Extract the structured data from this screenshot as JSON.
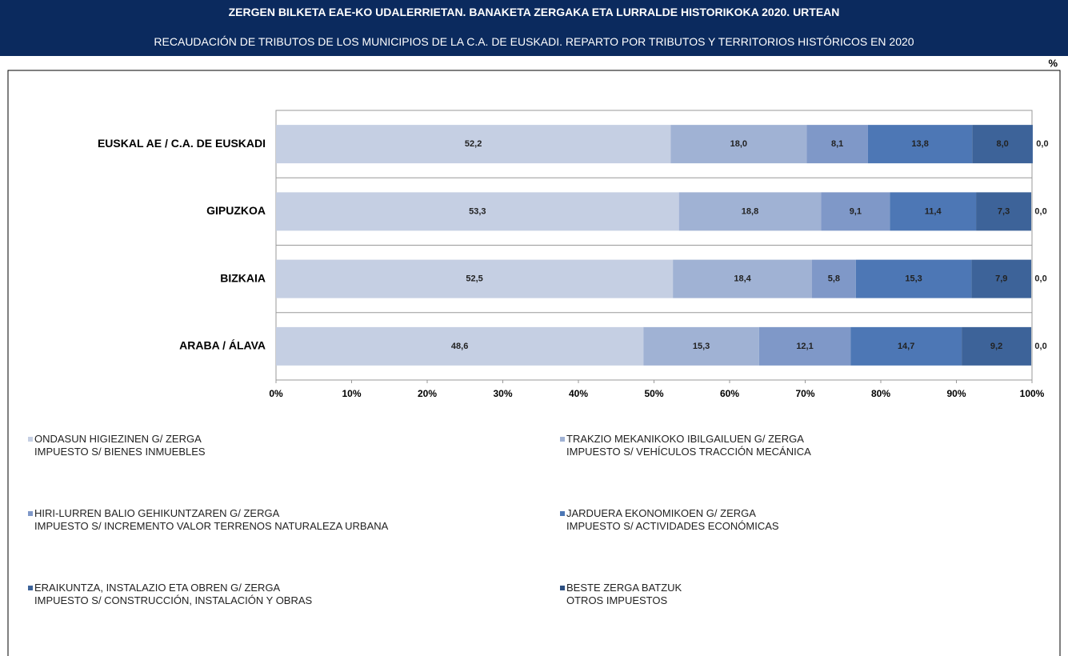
{
  "chart_data": {
    "type": "stacked_bar_horizontal",
    "title": "ZERGEN BILKETA EAE-KO UDALERRIETAN. BANAKETA ZERGAKA ETA LURRALDE HISTORIKOKA 2020. URTEAN",
    "subtitle": "RECAUDACIÓN DE TRIBUTOS DE LOS MUNICIPIOS DE LA C.A. DE EUSKADI. REPARTO POR TRIBUTOS Y TERRITORIOS HISTÓRICOS EN 2020",
    "unit_label": "%",
    "categories": [
      "EUSKAL AE / C.A. DE EUSKADI",
      "GIPUZKOA",
      "BIZKAIA",
      "ARABA / ÁLAVA"
    ],
    "series": [
      {
        "name": "ONDASUN HIGIEZINEN G/ ZERGA\nIMPUESTO S/ BIENES INMUEBLES",
        "color": "#c5cfe3",
        "values": [
          52.2,
          53.3,
          52.5,
          48.6
        ],
        "value_labels": [
          "52,2",
          "53,3",
          "52,5",
          "48,6"
        ]
      },
      {
        "name": "TRAKZIO MEKANIKOKO IBILGAILUEN G/ ZERGA\nIMPUESTO S/ VEHÍCULOS TRACCIÓN MECÁNICA",
        "color": "#a0b2d4",
        "values": [
          18.0,
          18.8,
          18.4,
          15.3
        ],
        "value_labels": [
          "18,0",
          "18,8",
          "18,4",
          "15,3"
        ]
      },
      {
        "name": "HIRI-LURREN BALIO GEHIKUNTZAREN G/ ZERGA\nIMPUESTO S/ INCREMENTO VALOR TERRENOS NATURALEZA URBANA",
        "color": "#7f98c8",
        "values": [
          8.1,
          9.1,
          5.8,
          12.1
        ],
        "value_labels": [
          "8,1",
          "9,1",
          "5,8",
          "12,1"
        ]
      },
      {
        "name": "JARDUERA EKONOMIKOEN G/ ZERGA\nIMPUESTO S/ ACTIVIDADES ECONÓMICAS",
        "color": "#4d77b5",
        "values": [
          13.8,
          11.4,
          15.3,
          14.7
        ],
        "value_labels": [
          "13,8",
          "11,4",
          "15,3",
          "14,7"
        ]
      },
      {
        "name": "ERAIKUNTZA, INSTALAZIO ETA OBREN G/ ZERGA\nIMPUESTO S/ CONSTRUCCIÓN, INSTALACIÓN Y OBRAS",
        "color": "#3d6399",
        "values": [
          8.0,
          7.3,
          7.9,
          9.2
        ],
        "value_labels": [
          "8,0",
          "7,3",
          "7,9",
          "9,2"
        ]
      },
      {
        "name": "BESTE ZERGA BATZUK\nOTROS IMPUESTOS",
        "color": "#2d4f80",
        "values": [
          0.0,
          0.0,
          0.0,
          0.0
        ],
        "value_labels": [
          "0,0",
          "0,0",
          "0,0",
          "0,0"
        ]
      }
    ],
    "xlim": [
      0,
      100
    ],
    "xticks": [
      {
        "value": 0,
        "label": "0%"
      },
      {
        "value": 10,
        "label": "10%"
      },
      {
        "value": 20,
        "label": "20%"
      },
      {
        "value": 30,
        "label": "30%"
      },
      {
        "value": 40,
        "label": "40%"
      },
      {
        "value": 50,
        "label": "50%"
      },
      {
        "value": 60,
        "label": "60%"
      },
      {
        "value": 70,
        "label": "70%"
      },
      {
        "value": 80,
        "label": "80%"
      },
      {
        "value": 90,
        "label": "90%"
      },
      {
        "value": 100,
        "label": "100%"
      }
    ]
  }
}
